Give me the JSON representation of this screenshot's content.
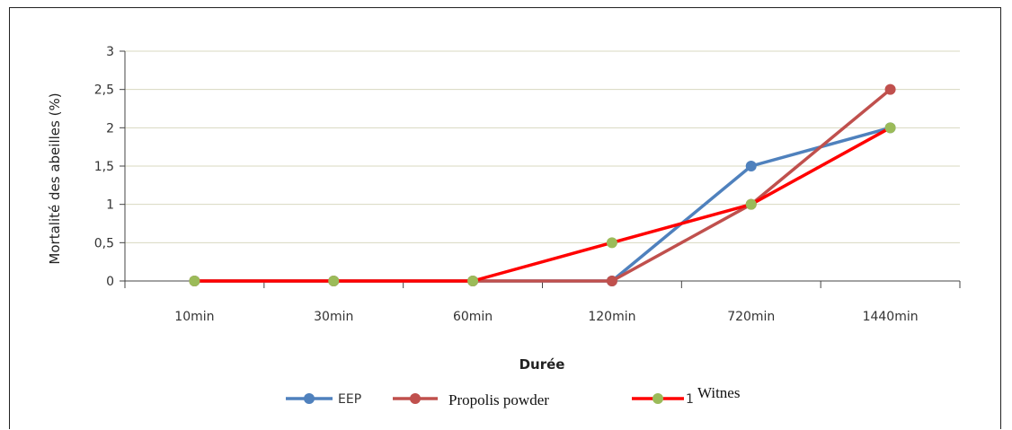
{
  "chart_data": {
    "type": "line",
    "categories": [
      "10min",
      "30min",
      "60min",
      "120min",
      "720min",
      "1440min"
    ],
    "series": [
      {
        "name": "EEP",
        "values": [
          0,
          0,
          0,
          0,
          1.5,
          2
        ],
        "color": "#4f81bd"
      },
      {
        "name": "Propolis powder",
        "values": [
          0,
          0,
          0,
          0,
          1,
          2.5
        ],
        "color": "#c0504d"
      },
      {
        "name": "Witnes",
        "values": [
          0,
          0,
          0,
          0.5,
          1,
          2
        ],
        "color": "#ff0000",
        "marker_color": "#9bbb59"
      }
    ],
    "y_ticks": [
      "0",
      "0,5",
      "1",
      "1,5",
      "2",
      "2,5",
      "3"
    ],
    "ylim": [
      0,
      3
    ],
    "xlabel": "Durée",
    "ylabel": "Mortalité des abeilles (%)",
    "grid": true,
    "legend_position": "bottom",
    "legend_partial_label": "1"
  }
}
